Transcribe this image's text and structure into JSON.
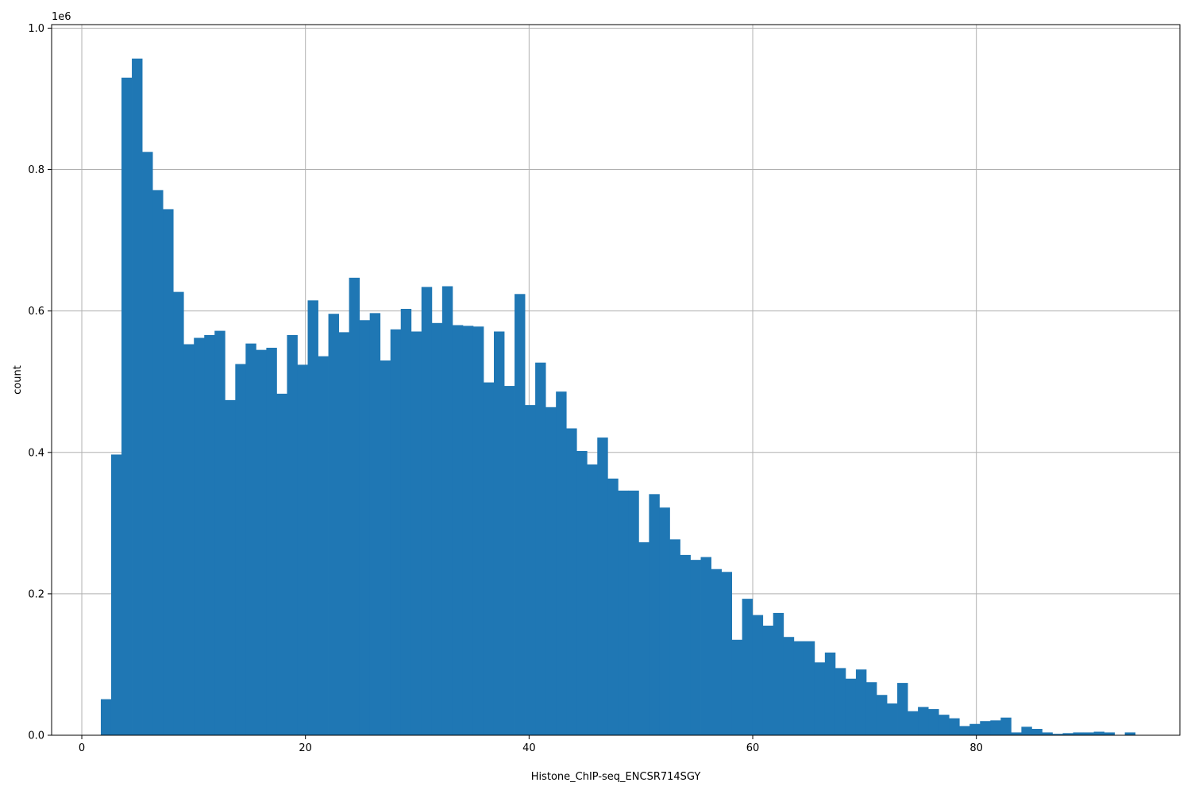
{
  "chart_data": {
    "type": "bar",
    "title": "",
    "xlabel": "Histone_ChIP-seq_ENCSR714SGY",
    "ylabel": "count",
    "y_offset_label": "1e6",
    "xlim": [
      -2.7,
      98.2
    ],
    "ylim": [
      0,
      1.005
    ],
    "x_ticks": [
      0,
      20,
      40,
      60,
      80
    ],
    "y_ticks": [
      0.0,
      0.2,
      0.4,
      0.6,
      0.8,
      1.0
    ],
    "x_tick_labels": [
      "0",
      "20",
      "40",
      "60",
      "80"
    ],
    "y_tick_labels": [
      "0.0",
      "0.2",
      "0.4",
      "0.6",
      "0.8",
      "1.0"
    ],
    "grid": true,
    "bar_color": "#1f77b4",
    "bin_start": 1.7,
    "bin_width": 0.925,
    "values": [
      0.051,
      0.397,
      0.93,
      0.957,
      0.825,
      0.771,
      0.744,
      0.627,
      0.553,
      0.562,
      0.566,
      0.572,
      0.474,
      0.525,
      0.554,
      0.545,
      0.548,
      0.483,
      0.566,
      0.524,
      0.615,
      0.536,
      0.596,
      0.57,
      0.647,
      0.587,
      0.597,
      0.53,
      0.574,
      0.603,
      0.571,
      0.634,
      0.583,
      0.635,
      0.58,
      0.579,
      0.578,
      0.499,
      0.571,
      0.494,
      0.624,
      0.467,
      0.527,
      0.464,
      0.486,
      0.434,
      0.402,
      0.383,
      0.421,
      0.363,
      0.346,
      0.346,
      0.273,
      0.341,
      0.322,
      0.277,
      0.255,
      0.248,
      0.252,
      0.235,
      0.231,
      0.135,
      0.193,
      0.17,
      0.155,
      0.173,
      0.139,
      0.133,
      0.133,
      0.103,
      0.117,
      0.095,
      0.08,
      0.093,
      0.075,
      0.057,
      0.045,
      0.074,
      0.034,
      0.04,
      0.037,
      0.029,
      0.024,
      0.013,
      0.016,
      0.02,
      0.021,
      0.025,
      0.004,
      0.012,
      0.009,
      0.004,
      0.002,
      0.003,
      0.004,
      0.004,
      0.005,
      0.004,
      0.0,
      0.004
    ]
  }
}
